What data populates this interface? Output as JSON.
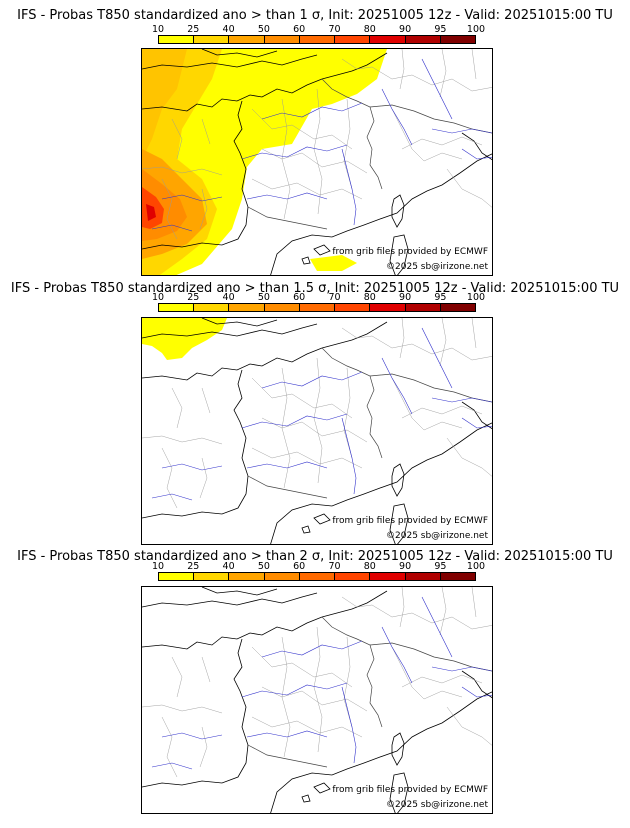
{
  "scale": {
    "labels": [
      "10",
      "25",
      "40",
      "50",
      "60",
      "70",
      "80",
      "90",
      "95",
      "100"
    ],
    "colors": [
      "#ffff00",
      "#ffd700",
      "#ffa500",
      "#ff8c00",
      "#ff6a00",
      "#ff4500",
      "#e00000",
      "#b00000",
      "#800000",
      "#500000"
    ]
  },
  "panels": [
    {
      "title": "IFS - Probas T850  standardized ano > than 1 σ, Init: 20251005 12z - Valid: 20251015:00 TU",
      "credit_source": "from grib files provided by ECMWF",
      "credit_copy": "©2025 sb@irizone.net"
    },
    {
      "title": "IFS - Probas T850  standardized ano > than 1.5 σ, Init: 20251005 12z - Valid: 20251015:00 TU",
      "credit_source": "from grib files provided by ECMWF",
      "credit_copy": "©2025 sb@irizone.net"
    },
    {
      "title": "IFS - Probas T850  standardized ano > than 2 σ, Init: 20251005 12z - Valid: 20251015:00 TU",
      "credit_source": "from grib files provided by ECMWF",
      "credit_copy": "©2025 sb@irizone.net"
    }
  ]
}
